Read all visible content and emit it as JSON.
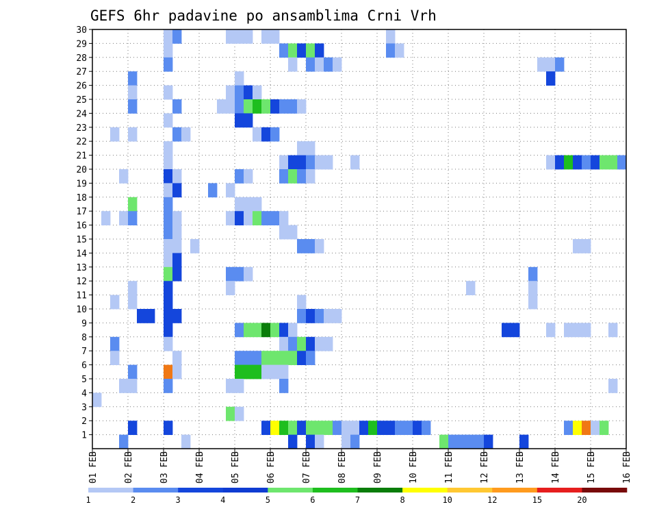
{
  "chart_data": {
    "type": "heatmap",
    "title": "GEFS 6hr padavine po ansamblima Crni Vrh",
    "xlabel": "",
    "ylabel": "",
    "x_tick_labels": [
      "01 FEB",
      "02 FEB",
      "03 FEB",
      "04 FEB",
      "05 FEB",
      "06 FEB",
      "07 FEB",
      "08 FEB",
      "09 FEB",
      "10 FEB",
      "11 FEB",
      "12 FEB",
      "13 FEB",
      "14 FEB",
      "15 FEB",
      "16 FEB"
    ],
    "xlim_days": [
      1,
      16
    ],
    "x_step_days": 0.25,
    "y_tick_labels": [
      "1",
      "2",
      "3",
      "4",
      "5",
      "6",
      "7",
      "8",
      "9",
      "10",
      "11",
      "12",
      "13",
      "14",
      "15",
      "16",
      "17",
      "18",
      "19",
      "20",
      "21",
      "22",
      "23",
      "24",
      "25",
      "26",
      "27",
      "28",
      "29",
      "30"
    ],
    "ylim": [
      0,
      30
    ],
    "grid": true,
    "colorbar": {
      "labels": [
        "1",
        "2",
        "3",
        "4",
        "5",
        "6",
        "7",
        "8",
        "10",
        "12",
        "15",
        "20"
      ],
      "colors": [
        "#b4c8f5",
        "#5a8cf0",
        "#1446dc",
        "#0f3cd2",
        "#6ee66e",
        "#1ebe1e",
        "#0a7d0a",
        "#ffff00",
        "#ffc832",
        "#ff9b1e",
        "#e61e1e",
        "#780a0a"
      ]
    },
    "levels": [
      {
        "label": "1-2",
        "color": "#b4c8f5"
      },
      {
        "label": "2-3",
        "color": "#5a8cf0"
      },
      {
        "label": "3-4",
        "color": "#1446dc"
      },
      {
        "label": "4-5",
        "color": "#6ee66e"
      },
      {
        "label": "5-6",
        "color": "#1ebe1e"
      },
      {
        "label": "6-7",
        "color": "#0a7d0a"
      },
      {
        "label": "7-8",
        "color": "#ffff00"
      },
      {
        "label": "10-12",
        "color": "#f07814"
      }
    ],
    "cells": [
      [
        3.0,
        30,
        1
      ],
      [
        3.25,
        30,
        2
      ],
      [
        4.75,
        30,
        1
      ],
      [
        5.0,
        30,
        1
      ],
      [
        5.25,
        30,
        1
      ],
      [
        5.75,
        30,
        1
      ],
      [
        6.0,
        30,
        1
      ],
      [
        9.25,
        30,
        1
      ],
      [
        3.0,
        29,
        1
      ],
      [
        6.25,
        29,
        2
      ],
      [
        6.5,
        29,
        4
      ],
      [
        6.75,
        29,
        3
      ],
      [
        7.0,
        29,
        4
      ],
      [
        7.25,
        29,
        3
      ],
      [
        9.25,
        29,
        2
      ],
      [
        9.5,
        29,
        1
      ],
      [
        3.0,
        28,
        2
      ],
      [
        6.5,
        28,
        1
      ],
      [
        7.0,
        28,
        2
      ],
      [
        7.25,
        28,
        1
      ],
      [
        7.5,
        28,
        2
      ],
      [
        7.75,
        28,
        1
      ],
      [
        13.5,
        28,
        1
      ],
      [
        13.75,
        28,
        1
      ],
      [
        14.0,
        28,
        2
      ],
      [
        2.0,
        27,
        2
      ],
      [
        5.0,
        27,
        1
      ],
      [
        13.75,
        27,
        3
      ],
      [
        2.0,
        26,
        1
      ],
      [
        3.0,
        26,
        1
      ],
      [
        4.75,
        26,
        1
      ],
      [
        5.0,
        26,
        2
      ],
      [
        5.25,
        26,
        3
      ],
      [
        5.5,
        26,
        1
      ],
      [
        2.0,
        25,
        2
      ],
      [
        3.25,
        25,
        2
      ],
      [
        4.5,
        25,
        1
      ],
      [
        4.75,
        25,
        1
      ],
      [
        5.0,
        25,
        2
      ],
      [
        5.25,
        25,
        4
      ],
      [
        5.5,
        25,
        5
      ],
      [
        5.75,
        25,
        4
      ],
      [
        6.0,
        25,
        3
      ],
      [
        6.25,
        25,
        2
      ],
      [
        6.5,
        25,
        2
      ],
      [
        6.75,
        25,
        1
      ],
      [
        3.0,
        24,
        1
      ],
      [
        5.0,
        24,
        3
      ],
      [
        5.25,
        24,
        3
      ],
      [
        1.5,
        23,
        1
      ],
      [
        2.0,
        23,
        1
      ],
      [
        3.25,
        23,
        2
      ],
      [
        3.5,
        23,
        1
      ],
      [
        5.5,
        23,
        1
      ],
      [
        5.75,
        23,
        3
      ],
      [
        6.0,
        23,
        2
      ],
      [
        3.0,
        22,
        1
      ],
      [
        6.75,
        22,
        1
      ],
      [
        7.0,
        22,
        1
      ],
      [
        3.0,
        21,
        1
      ],
      [
        6.25,
        21,
        1
      ],
      [
        6.5,
        21,
        3
      ],
      [
        6.75,
        21,
        3
      ],
      [
        7.0,
        21,
        2
      ],
      [
        7.25,
        21,
        1
      ],
      [
        7.5,
        21,
        1
      ],
      [
        8.25,
        21,
        1
      ],
      [
        13.75,
        21,
        1
      ],
      [
        14.0,
        21,
        3
      ],
      [
        14.25,
        21,
        5
      ],
      [
        14.5,
        21,
        3
      ],
      [
        14.75,
        21,
        2
      ],
      [
        15.0,
        21,
        3
      ],
      [
        15.25,
        21,
        4
      ],
      [
        15.5,
        21,
        4
      ],
      [
        15.75,
        21,
        2
      ],
      [
        1.75,
        20,
        1
      ],
      [
        3.0,
        20,
        3
      ],
      [
        3.25,
        20,
        1
      ],
      [
        5.0,
        20,
        2
      ],
      [
        5.25,
        20,
        1
      ],
      [
        6.25,
        20,
        2
      ],
      [
        6.5,
        20,
        4
      ],
      [
        6.75,
        20,
        2
      ],
      [
        7.0,
        20,
        1
      ],
      [
        3.0,
        19,
        1
      ],
      [
        3.25,
        19,
        3
      ],
      [
        4.25,
        19,
        2
      ],
      [
        4.75,
        19,
        1
      ],
      [
        2.0,
        18,
        4
      ],
      [
        3.0,
        18,
        2
      ],
      [
        5.0,
        18,
        1
      ],
      [
        5.25,
        18,
        1
      ],
      [
        5.5,
        18,
        1
      ],
      [
        1.25,
        17,
        1
      ],
      [
        1.75,
        17,
        1
      ],
      [
        2.0,
        17,
        2
      ],
      [
        3.0,
        17,
        2
      ],
      [
        3.25,
        17,
        1
      ],
      [
        4.75,
        17,
        1
      ],
      [
        5.0,
        17,
        3
      ],
      [
        5.25,
        17,
        1
      ],
      [
        5.5,
        17,
        4
      ],
      [
        5.75,
        17,
        2
      ],
      [
        6.0,
        17,
        2
      ],
      [
        6.25,
        17,
        1
      ],
      [
        3.0,
        16,
        2
      ],
      [
        3.25,
        16,
        1
      ],
      [
        6.25,
        16,
        1
      ],
      [
        6.5,
        16,
        1
      ],
      [
        3.0,
        15,
        1
      ],
      [
        3.25,
        15,
        1
      ],
      [
        3.75,
        15,
        1
      ],
      [
        6.75,
        15,
        2
      ],
      [
        7.0,
        15,
        2
      ],
      [
        7.25,
        15,
        1
      ],
      [
        14.5,
        15,
        1
      ],
      [
        14.75,
        15,
        1
      ],
      [
        3.0,
        14,
        1
      ],
      [
        3.25,
        14,
        3
      ],
      [
        3.0,
        13,
        4
      ],
      [
        3.25,
        13,
        3
      ],
      [
        4.75,
        13,
        2
      ],
      [
        5.0,
        13,
        2
      ],
      [
        5.25,
        13,
        1
      ],
      [
        13.25,
        13,
        2
      ],
      [
        2.0,
        12,
        1
      ],
      [
        3.0,
        12,
        3
      ],
      [
        4.75,
        12,
        1
      ],
      [
        11.5,
        12,
        1
      ],
      [
        13.25,
        12,
        1
      ],
      [
        1.5,
        11,
        1
      ],
      [
        2.0,
        11,
        1
      ],
      [
        3.0,
        11,
        3
      ],
      [
        6.75,
        11,
        1
      ],
      [
        13.25,
        11,
        1
      ],
      [
        2.25,
        10,
        3
      ],
      [
        2.5,
        10,
        3
      ],
      [
        3.0,
        10,
        3
      ],
      [
        3.25,
        10,
        3
      ],
      [
        6.75,
        10,
        2
      ],
      [
        7.0,
        10,
        3
      ],
      [
        7.25,
        10,
        2
      ],
      [
        7.5,
        10,
        1
      ],
      [
        7.75,
        10,
        1
      ],
      [
        3.0,
        9,
        3
      ],
      [
        5.0,
        9,
        2
      ],
      [
        5.25,
        9,
        4
      ],
      [
        5.5,
        9,
        4
      ],
      [
        5.75,
        9,
        6
      ],
      [
        6.0,
        9,
        4
      ],
      [
        6.25,
        9,
        3
      ],
      [
        6.5,
        9,
        1
      ],
      [
        12.5,
        9,
        3
      ],
      [
        12.75,
        9,
        3
      ],
      [
        13.75,
        9,
        1
      ],
      [
        14.25,
        9,
        1
      ],
      [
        14.5,
        9,
        1
      ],
      [
        14.75,
        9,
        1
      ],
      [
        15.5,
        9,
        1
      ],
      [
        1.5,
        8,
        2
      ],
      [
        3.0,
        8,
        1
      ],
      [
        6.25,
        8,
        1
      ],
      [
        6.5,
        8,
        2
      ],
      [
        6.75,
        8,
        4
      ],
      [
        7.0,
        8,
        3
      ],
      [
        7.25,
        8,
        1
      ],
      [
        7.5,
        8,
        1
      ],
      [
        1.5,
        7,
        1
      ],
      [
        3.25,
        7,
        1
      ],
      [
        5.0,
        7,
        2
      ],
      [
        5.25,
        7,
        2
      ],
      [
        5.5,
        7,
        2
      ],
      [
        5.75,
        7,
        4
      ],
      [
        6.0,
        7,
        4
      ],
      [
        6.25,
        7,
        4
      ],
      [
        6.5,
        7,
        4
      ],
      [
        6.75,
        7,
        3
      ],
      [
        7.0,
        7,
        2
      ],
      [
        2.0,
        6,
        2
      ],
      [
        3.0,
        6,
        10
      ],
      [
        3.25,
        6,
        1
      ],
      [
        5.0,
        6,
        5
      ],
      [
        5.25,
        6,
        5
      ],
      [
        5.5,
        6,
        5
      ],
      [
        5.75,
        6,
        1
      ],
      [
        6.0,
        6,
        1
      ],
      [
        6.25,
        6,
        1
      ],
      [
        1.75,
        5,
        1
      ],
      [
        2.0,
        5,
        1
      ],
      [
        3.0,
        5,
        2
      ],
      [
        4.75,
        5,
        1
      ],
      [
        5.0,
        5,
        1
      ],
      [
        6.25,
        5,
        2
      ],
      [
        15.5,
        5,
        1
      ],
      [
        1.0,
        4,
        1
      ],
      [
        4.75,
        3,
        4
      ],
      [
        5.0,
        3,
        1
      ],
      [
        2.0,
        2,
        3
      ],
      [
        3.0,
        2,
        3
      ],
      [
        5.75,
        2,
        3
      ],
      [
        6.0,
        2,
        7
      ],
      [
        6.25,
        2,
        5
      ],
      [
        6.5,
        2,
        4
      ],
      [
        6.75,
        2,
        3
      ],
      [
        7.0,
        2,
        4
      ],
      [
        7.25,
        2,
        4
      ],
      [
        7.5,
        2,
        4
      ],
      [
        7.75,
        2,
        2
      ],
      [
        8.0,
        2,
        1
      ],
      [
        8.25,
        2,
        1
      ],
      [
        8.5,
        2,
        3
      ],
      [
        8.75,
        2,
        5
      ],
      [
        9.0,
        2,
        3
      ],
      [
        9.25,
        2,
        3
      ],
      [
        9.5,
        2,
        2
      ],
      [
        9.75,
        2,
        2
      ],
      [
        10.0,
        2,
        3
      ],
      [
        10.25,
        2,
        2
      ],
      [
        14.25,
        2,
        2
      ],
      [
        14.5,
        2,
        7
      ],
      [
        14.75,
        2,
        10
      ],
      [
        15.0,
        2,
        1
      ],
      [
        15.25,
        2,
        4
      ],
      [
        1.75,
        1,
        2
      ],
      [
        3.5,
        1,
        1
      ],
      [
        6.5,
        1,
        3
      ],
      [
        7.0,
        1,
        3
      ],
      [
        7.25,
        1,
        1
      ],
      [
        8.0,
        1,
        1
      ],
      [
        8.25,
        1,
        2
      ],
      [
        10.75,
        1,
        4
      ],
      [
        11.0,
        1,
        2
      ],
      [
        11.25,
        1,
        2
      ],
      [
        11.5,
        1,
        2
      ],
      [
        11.75,
        1,
        2
      ],
      [
        12.0,
        1,
        3
      ],
      [
        13.0,
        1,
        3
      ]
    ]
  }
}
